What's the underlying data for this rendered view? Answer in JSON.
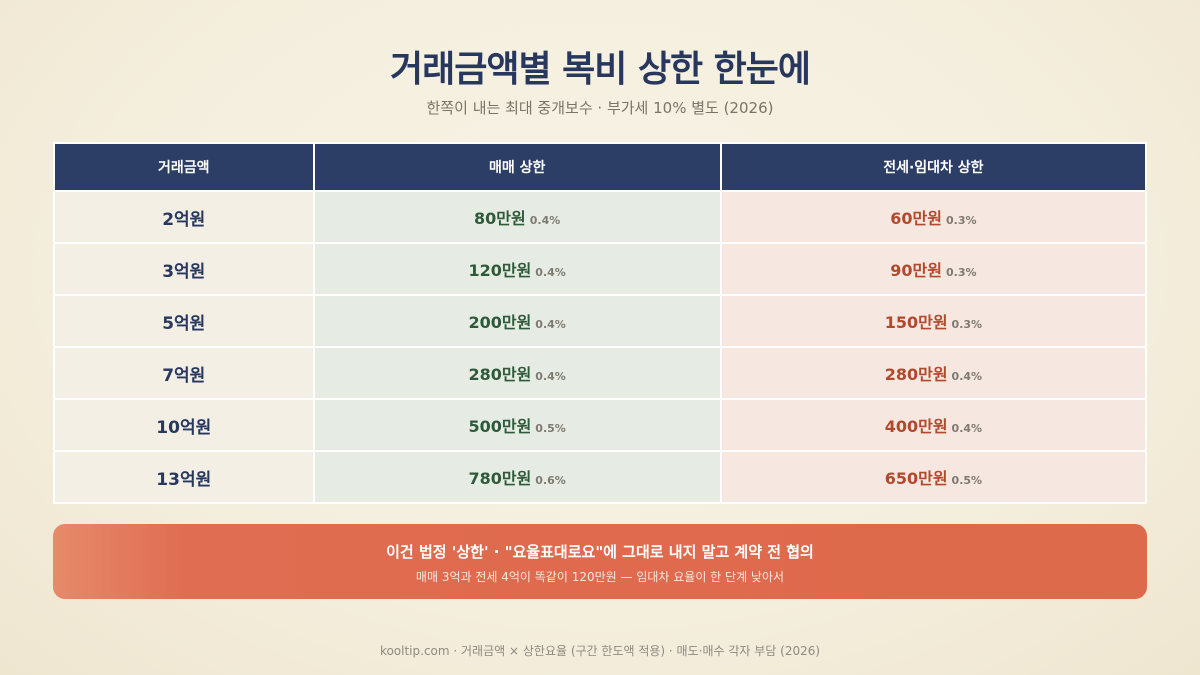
{
  "title": "거래금액별 복비 상한 한눈에",
  "subtitle": "한쪽이 내는 최대 중개보수 · 부가세 10% 별도 (2026)",
  "table": {
    "headers": [
      "거래금액",
      "매매 상한",
      "전세·임대차 상한"
    ],
    "rows": [
      {
        "amount": "2억원",
        "sale": "80만원",
        "sale_rate": "0.4%",
        "lease": "60만원",
        "lease_rate": "0.3%"
      },
      {
        "amount": "3억원",
        "sale": "120만원",
        "sale_rate": "0.4%",
        "lease": "90만원",
        "lease_rate": "0.3%"
      },
      {
        "amount": "5억원",
        "sale": "200만원",
        "sale_rate": "0.4%",
        "lease": "150만원",
        "lease_rate": "0.3%"
      },
      {
        "amount": "7억원",
        "sale": "280만원",
        "sale_rate": "0.4%",
        "lease": "280만원",
        "lease_rate": "0.4%"
      },
      {
        "amount": "10억원",
        "sale": "500만원",
        "sale_rate": "0.5%",
        "lease": "400만원",
        "lease_rate": "0.4%"
      },
      {
        "amount": "13억원",
        "sale": "780만원",
        "sale_rate": "0.6%",
        "lease": "650만원",
        "lease_rate": "0.5%"
      }
    ]
  },
  "banner": {
    "main": "이건 법정 '상한' · \"요율표대로요\"에 그대로 내지 말고 계약 전 협의",
    "sub": "매매 3억과 전세 4억이 똑같이 120만원 — 임대차 요율이 한 단계 낮아서"
  },
  "footer": "kooltip.com · 거래금액 × 상한요율 (구간 한도액 적용) · 매도·매수 각자 부담 (2026)",
  "colors": {
    "header_bg": "#2c3e66",
    "sale_text": "#2f5a3a",
    "lease_text": "#b2492c",
    "banner_bg": "#df6a4d"
  }
}
